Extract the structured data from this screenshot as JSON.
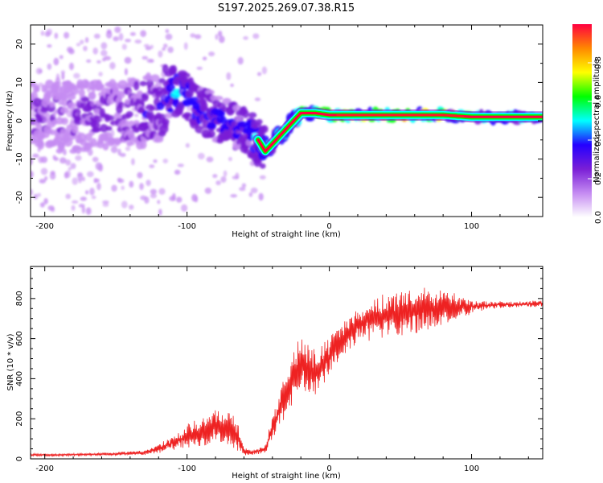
{
  "title": "S197.2025.269.07.38.R15",
  "chart_data": [
    {
      "type": "heatmap",
      "name": "spectrogram",
      "xlabel": "Height of straight line (km)",
      "ylabel": "Frequency (Hz)",
      "xlim": [
        -210,
        150
      ],
      "ylim": [
        -25,
        25
      ],
      "xticks": [
        -200,
        -100,
        0,
        100
      ],
      "yticks": [
        -20,
        -10,
        0,
        10,
        20
      ],
      "grid": false,
      "colorbar": {
        "label": "Normalized spectral amplitude",
        "range": [
          0,
          1
        ],
        "ticks": [
          0.0,
          0.2,
          0.4,
          0.6,
          0.8
        ],
        "tick_labels": [
          "0.0",
          "0.2",
          "0.4",
          "0.6",
          "0.8"
        ],
        "colors": [
          "#ffffff",
          "#c58cf2",
          "#7a1fd6",
          "#2400ff",
          "#00ffff",
          "#00ff00",
          "#ffff00",
          "#ff8800",
          "#ff0040"
        ]
      },
      "ridge": {
        "x": [
          -200,
          -180,
          -160,
          -140,
          -120,
          -110,
          -100,
          -90,
          -80,
          -70,
          -60,
          -50,
          -45,
          -40,
          -30,
          -20,
          -10,
          0,
          20,
          50,
          80,
          100,
          120,
          150
        ],
        "frequency": [
          1,
          1,
          1.5,
          2,
          3,
          8,
          6,
          3,
          1,
          -1,
          -2,
          -5,
          -8,
          -6,
          -2,
          2,
          2,
          1.5,
          1.5,
          1.5,
          1.5,
          1,
          1,
          1
        ],
        "amplitude": [
          0.22,
          0.22,
          0.24,
          0.26,
          0.3,
          0.45,
          0.4,
          0.38,
          0.36,
          0.34,
          0.34,
          0.4,
          0.5,
          0.55,
          0.6,
          0.75,
          0.85,
          0.9,
          0.95,
          0.95,
          0.95,
          0.6,
          0.55,
          0.55
        ]
      }
    },
    {
      "type": "line",
      "name": "snr",
      "xlabel": "Height of straight line (km)",
      "ylabel": "SNR (10 * v/v)",
      "xlim": [
        -210,
        150
      ],
      "ylim": [
        0,
        960
      ],
      "xticks": [
        -200,
        -100,
        0,
        100
      ],
      "yticks": [
        0,
        200,
        400,
        600,
        800
      ],
      "color": "#ee2222",
      "grid": false,
      "series": [
        {
          "name": "SNR",
          "x": [
            -210,
            -190,
            -170,
            -150,
            -130,
            -120,
            -110,
            -100,
            -90,
            -80,
            -70,
            -65,
            -60,
            -55,
            -50,
            -45,
            -40,
            -35,
            -30,
            -25,
            -20,
            -15,
            -10,
            -5,
            0,
            5,
            10,
            15,
            20,
            25,
            30,
            40,
            50,
            60,
            70,
            80,
            90,
            100,
            110,
            120,
            130,
            140,
            150
          ],
          "values": [
            20,
            20,
            22,
            25,
            30,
            50,
            80,
            110,
            130,
            160,
            150,
            120,
            40,
            30,
            40,
            50,
            150,
            250,
            320,
            420,
            470,
            440,
            420,
            480,
            520,
            560,
            600,
            630,
            660,
            680,
            700,
            720,
            730,
            740,
            745,
            750,
            760,
            760,
            765,
            770,
            770,
            772,
            775
          ],
          "spread": [
            6,
            6,
            6,
            8,
            10,
            20,
            35,
            55,
            65,
            80,
            90,
            80,
            20,
            12,
            15,
            20,
            60,
            80,
            110,
            120,
            130,
            120,
            110,
            100,
            90,
            85,
            80,
            80,
            80,
            85,
            90,
            100,
            110,
            110,
            100,
            80,
            60,
            30,
            20,
            15,
            15,
            15,
            15
          ]
        }
      ]
    }
  ]
}
